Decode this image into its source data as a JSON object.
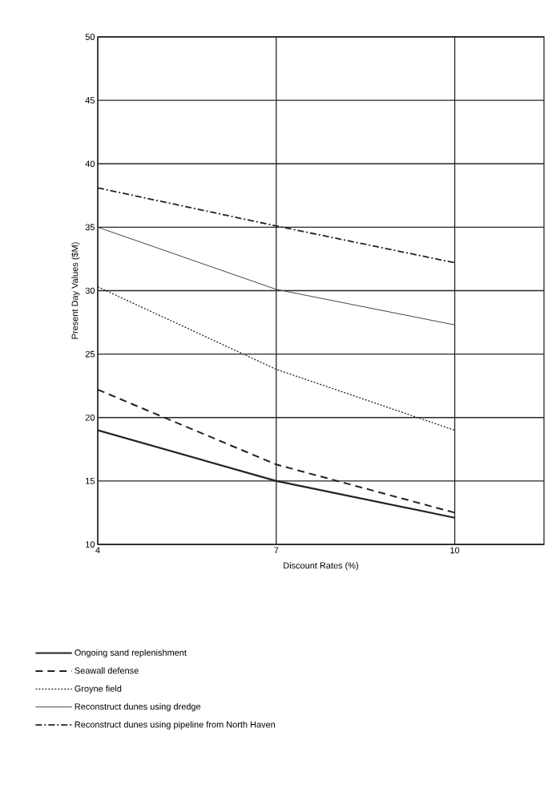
{
  "chart_data": {
    "type": "line",
    "xlabel": "Discount Rates (%)",
    "ylabel": "Present Day Values ($M)",
    "x": [
      4,
      7,
      10
    ],
    "series": [
      {
        "name": "Ongoing sand replenishment",
        "color": "#222222",
        "line_style": "solid",
        "values": [
          19,
          15,
          12.1
        ]
      },
      {
        "name": "Seawall defense",
        "color": "#222222",
        "line_style": "dashed",
        "values": [
          22.2,
          16.3,
          12.5
        ]
      },
      {
        "name": "Groyne field",
        "color": "#222222",
        "line_style": "dotted",
        "values": [
          30.3,
          23.8,
          19
        ]
      },
      {
        "name": "Reconstruct dunes using dredge",
        "color": "#444444",
        "line_style": "solid",
        "values": [
          35,
          30.1,
          27.3
        ]
      },
      {
        "name": "Reconstruct dunes using pipeline from North Haven",
        "color": "#222222",
        "line_style": "dashdot",
        "values": [
          38.1,
          35.1,
          32.2
        ]
      }
    ],
    "xlim": [
      4,
      11.5
    ],
    "xticks": [
      4,
      7,
      10
    ],
    "ylim": [
      10,
      50
    ],
    "yticks": [
      10,
      15,
      20,
      25,
      30,
      35,
      40,
      45,
      50
    ],
    "grid": true,
    "legend": "bottom",
    "marker": "none"
  }
}
